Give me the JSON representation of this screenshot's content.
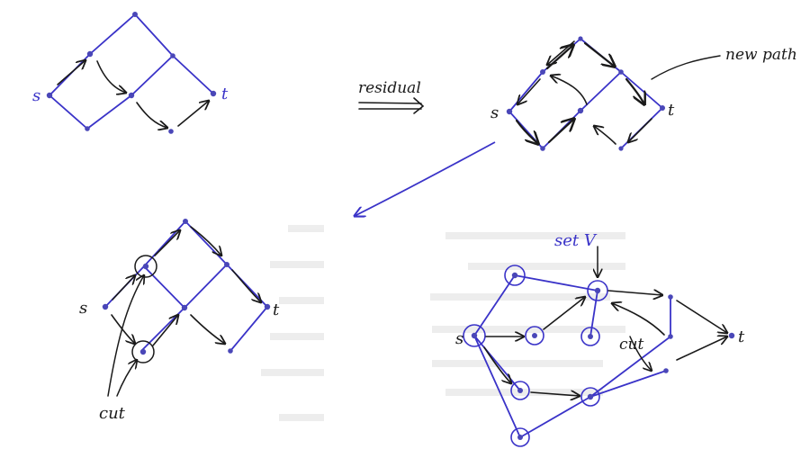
{
  "labels": {
    "s": "s",
    "t": "t",
    "residual": "residual",
    "new_path": "new path",
    "cut": "cut",
    "set_v": "set V"
  },
  "colors": {
    "ink_black": "#1a1a1a",
    "ink_blue": "#3a33c8",
    "node_fill": "#4a47b8"
  }
}
